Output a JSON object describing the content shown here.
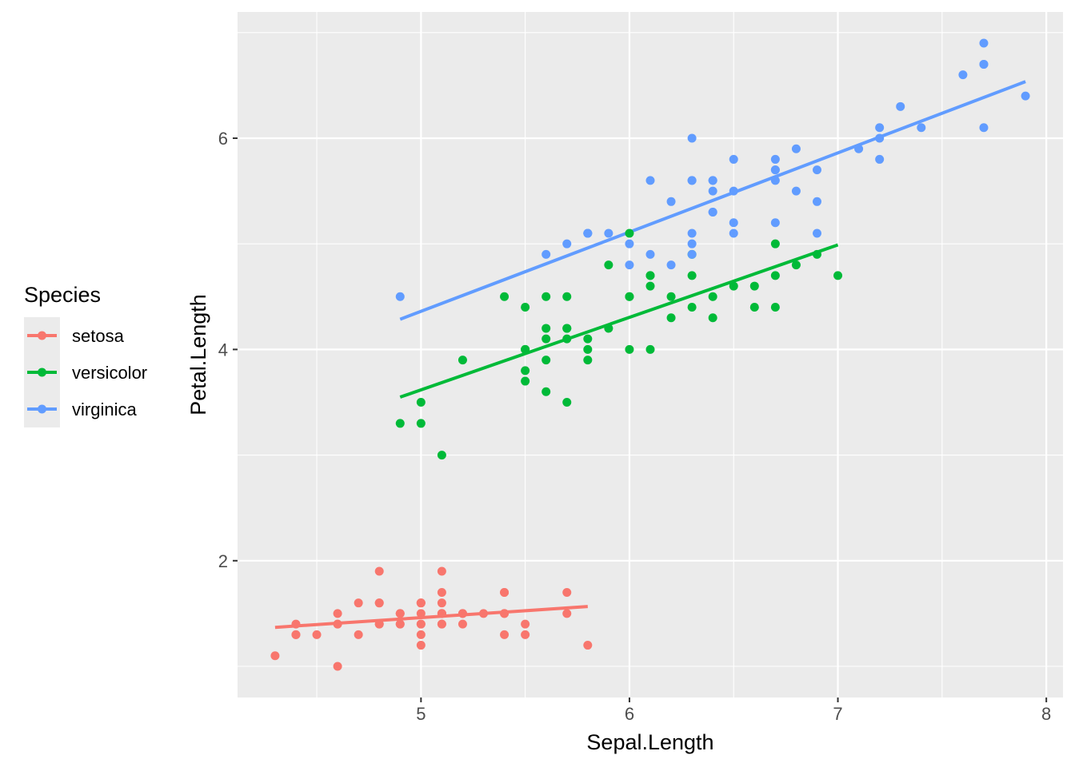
{
  "chart_data": {
    "type": "scatter",
    "title": "",
    "xlabel": "Sepal.Length",
    "ylabel": "Petal.Length",
    "xlim": [
      4.12,
      8.08
    ],
    "ylim": [
      0.705,
      7.195
    ],
    "xticks": [
      5,
      6,
      7,
      8
    ],
    "yticks": [
      2,
      4,
      6
    ],
    "xtick_labels": [
      "5",
      "6",
      "7",
      "8"
    ],
    "ytick_labels": [
      "2",
      "4",
      "6"
    ],
    "grid": true,
    "legend": {
      "title": "Species",
      "placement": "left"
    },
    "series": [
      {
        "name": "setosa",
        "color": "#F8766D",
        "x": [
          5.1,
          4.9,
          4.7,
          4.6,
          5.0,
          5.4,
          4.6,
          5.0,
          4.4,
          4.9,
          5.4,
          4.8,
          4.8,
          4.3,
          5.8,
          5.7,
          5.4,
          5.1,
          5.7,
          5.1,
          5.4,
          5.1,
          4.6,
          5.1,
          4.8,
          5.0,
          5.0,
          5.2,
          5.2,
          4.7,
          4.8,
          5.4,
          5.2,
          5.5,
          4.9,
          5.0,
          5.5,
          4.9,
          4.4,
          5.1,
          5.0,
          4.5,
          4.4,
          5.0,
          5.1,
          4.8,
          5.1,
          4.6,
          5.3,
          5.0
        ],
        "y": [
          1.4,
          1.4,
          1.3,
          1.5,
          1.4,
          1.7,
          1.4,
          1.5,
          1.4,
          1.5,
          1.5,
          1.6,
          1.4,
          1.1,
          1.2,
          1.5,
          1.3,
          1.4,
          1.7,
          1.5,
          1.7,
          1.5,
          1.0,
          1.7,
          1.9,
          1.6,
          1.6,
          1.5,
          1.4,
          1.6,
          1.6,
          1.5,
          1.5,
          1.4,
          1.5,
          1.2,
          1.3,
          1.4,
          1.3,
          1.5,
          1.3,
          1.3,
          1.3,
          1.6,
          1.9,
          1.4,
          1.6,
          1.4,
          1.5,
          1.4
        ],
        "fit": {
          "x": [
            4.3,
            5.8
          ],
          "y": [
            1.369,
            1.566
          ]
        }
      },
      {
        "name": "versicolor",
        "color": "#00BA38",
        "x": [
          7.0,
          6.4,
          6.9,
          5.5,
          6.5,
          5.7,
          6.3,
          4.9,
          6.6,
          5.2,
          5.0,
          5.9,
          6.0,
          6.1,
          5.6,
          6.7,
          5.6,
          5.8,
          6.2,
          5.6,
          5.9,
          6.1,
          6.3,
          6.1,
          6.4,
          6.6,
          6.8,
          6.7,
          6.0,
          5.7,
          5.5,
          5.5,
          5.8,
          6.0,
          5.4,
          6.0,
          6.7,
          6.3,
          5.6,
          5.5,
          5.5,
          6.1,
          5.8,
          5.0,
          5.6,
          5.7,
          5.7,
          6.2,
          5.1,
          5.7
        ],
        "y": [
          4.7,
          4.5,
          4.9,
          4.0,
          4.6,
          4.5,
          4.7,
          3.3,
          4.6,
          3.9,
          3.5,
          4.2,
          4.0,
          4.7,
          3.6,
          4.4,
          4.5,
          4.1,
          4.5,
          3.9,
          4.8,
          4.0,
          4.9,
          4.7,
          4.3,
          4.4,
          4.8,
          5.0,
          4.5,
          3.5,
          3.8,
          3.7,
          3.9,
          5.1,
          4.5,
          4.5,
          4.7,
          4.4,
          4.1,
          4.0,
          4.4,
          4.6,
          4.0,
          3.3,
          4.2,
          4.2,
          4.2,
          4.3,
          3.0,
          4.1
        ],
        "fit": {
          "x": [
            4.9,
            7.0
          ],
          "y": [
            3.549,
            4.99
          ]
        }
      },
      {
        "name": "virginica",
        "color": "#619CFF",
        "x": [
          6.3,
          5.8,
          7.1,
          6.3,
          6.5,
          7.6,
          4.9,
          7.3,
          6.7,
          7.2,
          6.5,
          6.4,
          6.8,
          5.7,
          5.8,
          6.4,
          6.5,
          7.7,
          7.7,
          6.0,
          6.9,
          5.6,
          7.7,
          6.3,
          6.7,
          7.2,
          6.2,
          6.1,
          6.4,
          7.2,
          7.4,
          7.9,
          6.4,
          6.3,
          6.1,
          7.7,
          6.3,
          6.4,
          6.0,
          6.9,
          6.7,
          6.9,
          5.8,
          6.8,
          6.7,
          6.7,
          6.3,
          6.5,
          6.2,
          5.9
        ],
        "y": [
          6.0,
          5.1,
          5.9,
          5.6,
          5.8,
          6.6,
          4.5,
          6.3,
          5.8,
          6.1,
          5.1,
          5.3,
          5.5,
          5.0,
          5.1,
          5.3,
          5.5,
          6.7,
          6.9,
          5.0,
          5.7,
          4.9,
          6.7,
          4.9,
          5.7,
          6.0,
          4.8,
          4.9,
          5.6,
          5.8,
          6.1,
          6.4,
          5.6,
          5.1,
          5.6,
          6.1,
          5.6,
          5.5,
          4.8,
          5.4,
          5.6,
          5.1,
          5.1,
          5.9,
          5.7,
          5.2,
          5.0,
          5.2,
          5.4,
          5.1
        ],
        "fit": {
          "x": [
            4.9,
            7.9
          ],
          "y": [
            4.286,
            6.536
          ]
        }
      }
    ]
  }
}
